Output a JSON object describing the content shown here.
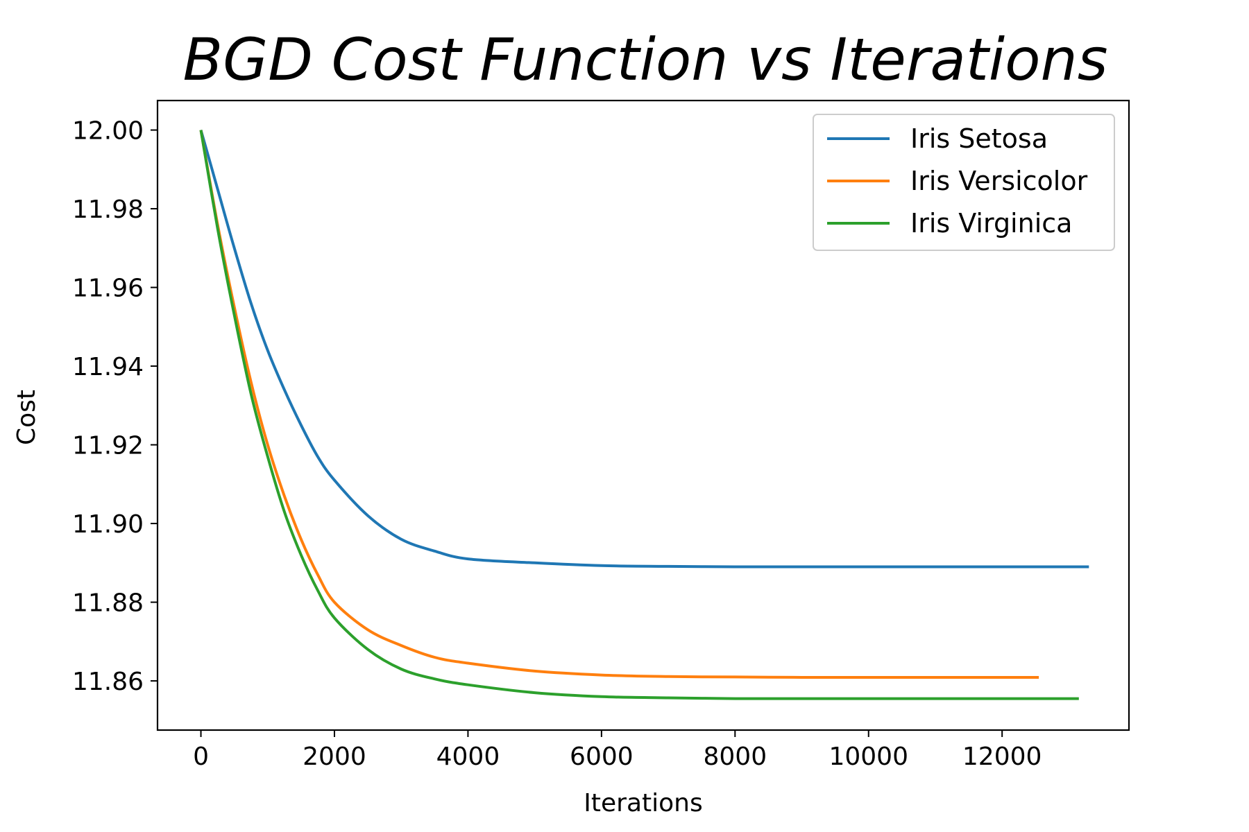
{
  "chart_data": {
    "type": "line",
    "title": "BGD Cost Function vs Iterations",
    "xlabel": "Iterations",
    "ylabel": "Cost",
    "xlim": [
      -650,
      13900
    ],
    "ylim": [
      11.8475,
      12.0075
    ],
    "xticks": [
      0,
      2000,
      4000,
      6000,
      8000,
      10000,
      12000
    ],
    "xtick_labels": [
      "0",
      "2000",
      "4000",
      "6000",
      "8000",
      "10000",
      "12000"
    ],
    "yticks": [
      12.0,
      11.98,
      11.96,
      11.94,
      11.92,
      11.9,
      11.88,
      11.86
    ],
    "ytick_labels": [
      "12.00",
      "11.98",
      "11.96",
      "11.94",
      "11.92",
      "11.90",
      "11.88",
      "11.86"
    ],
    "grid": false,
    "legend_position": "top-right",
    "x": [
      0,
      250,
      500,
      750,
      1000,
      1250,
      1500,
      1750,
      2000,
      2500,
      3000,
      3500,
      4000,
      5000,
      6000,
      7000,
      8000,
      9000,
      10000,
      11000,
      12000,
      12550,
      13150,
      13300
    ],
    "series": [
      {
        "name": "Iris Setosa",
        "color": "#1f77b4",
        "x": [
          0,
          250,
          500,
          750,
          1000,
          1250,
          1500,
          1750,
          2000,
          2500,
          3000,
          3500,
          4000,
          5000,
          6000,
          7000,
          8000,
          9000,
          10000,
          11000,
          12000,
          13300
        ],
        "values": [
          12.0,
          11.985,
          11.97,
          11.956,
          11.944,
          11.934,
          11.925,
          11.917,
          11.911,
          11.902,
          11.896,
          11.893,
          11.891,
          11.89,
          11.8893,
          11.8891,
          11.889,
          11.889,
          11.889,
          11.889,
          11.889,
          11.889
        ]
      },
      {
        "name": "Iris Versicolor",
        "color": "#ff7f0e",
        "x": [
          0,
          250,
          500,
          750,
          1000,
          1250,
          1500,
          1750,
          2000,
          2500,
          3000,
          3500,
          4000,
          5000,
          6000,
          7000,
          8000,
          9000,
          10000,
          11000,
          12000,
          12550
        ],
        "values": [
          12.0,
          11.976,
          11.955,
          11.936,
          11.92,
          11.907,
          11.896,
          11.887,
          11.88,
          11.873,
          11.869,
          11.866,
          11.8645,
          11.8625,
          11.8615,
          11.8611,
          11.861,
          11.8609,
          11.8609,
          11.8609,
          11.8609,
          11.8609
        ]
      },
      {
        "name": "Iris Virginica",
        "color": "#2ca02c",
        "x": [
          0,
          250,
          500,
          750,
          1000,
          1250,
          1500,
          1750,
          2000,
          2500,
          3000,
          3500,
          4000,
          5000,
          6000,
          7000,
          8000,
          9000,
          10000,
          11000,
          12000,
          13150
        ],
        "values": [
          12.0,
          11.975,
          11.953,
          11.933,
          11.917,
          11.903,
          11.892,
          11.883,
          11.876,
          11.868,
          11.863,
          11.8605,
          11.859,
          11.857,
          11.856,
          11.8557,
          11.8555,
          11.8555,
          11.8555,
          11.8555,
          11.8555,
          11.8555
        ]
      }
    ]
  }
}
